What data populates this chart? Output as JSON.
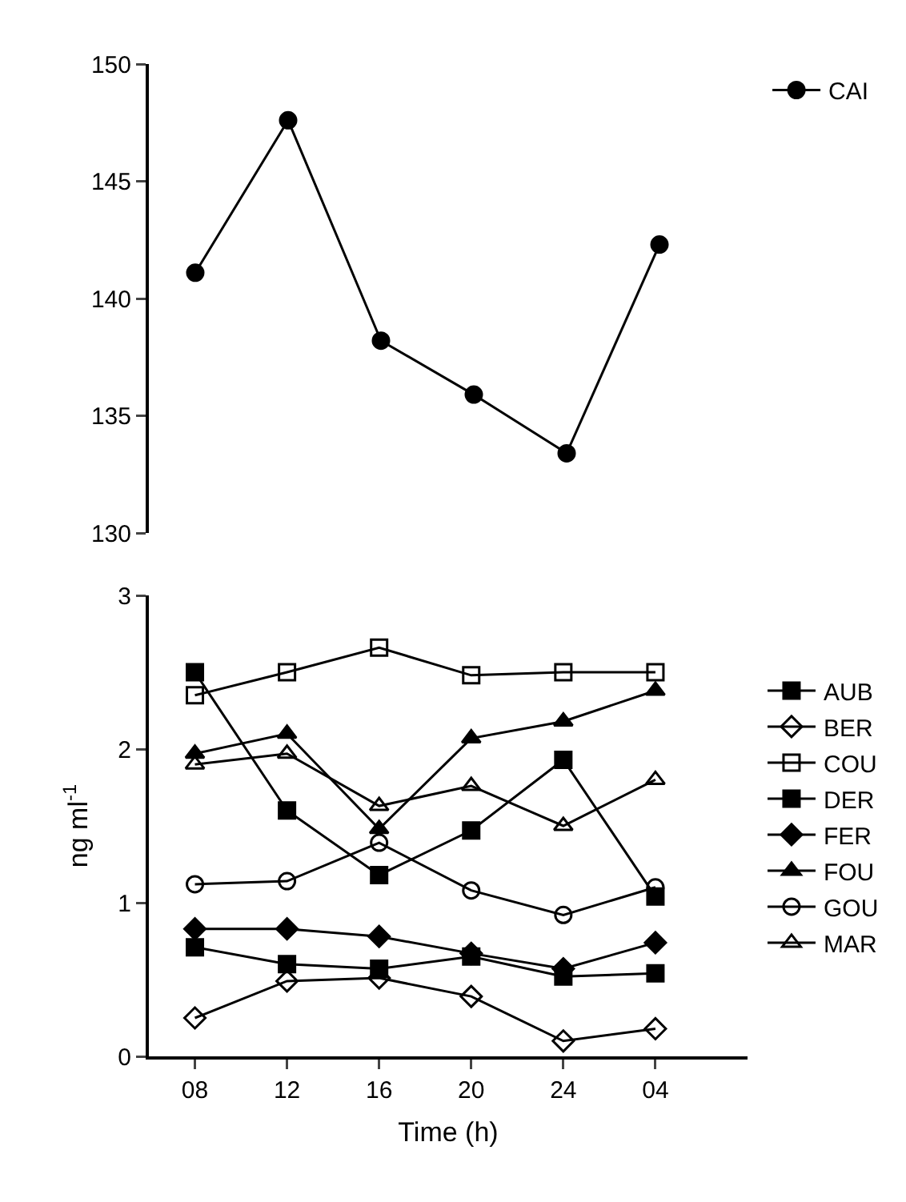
{
  "chart_data": [
    {
      "type": "line",
      "categories": [
        "08",
        "12",
        "16",
        "20",
        "24",
        "04"
      ],
      "ylim": [
        130,
        150
      ],
      "yticks": [
        130,
        135,
        140,
        145,
        150
      ],
      "tick_labels": "y",
      "grid": false,
      "legend": "top right",
      "series": [
        {
          "name": "CAI",
          "color": "#000000",
          "marker": "circle",
          "values": [
            141.1,
            147.6,
            138.2,
            135.9,
            133.4,
            142.3
          ]
        }
      ]
    },
    {
      "type": "line",
      "categories": [
        "08",
        "12",
        "16",
        "20",
        "24",
        "04"
      ],
      "xlabel": "Time (h)",
      "ylabel": "ng ml$^{-1}$",
      "ylim": [
        0,
        3
      ],
      "yticks": [
        0,
        1,
        2,
        3
      ],
      "grid": false,
      "legend": "right",
      "series": [
        {
          "name": "AUB",
          "color": "#000000",
          "marker": "square",
          "values": [
            2.5,
            1.6,
            1.18,
            1.47,
            1.93,
            1.04
          ]
        },
        {
          "name": "BER",
          "color": "#000000",
          "marker": "diamond-open",
          "values": [
            0.25,
            0.49,
            0.51,
            0.39,
            0.1,
            0.18
          ]
        },
        {
          "name": "COU",
          "color": "#000000",
          "marker": "square-open",
          "values": [
            2.35,
            2.5,
            2.66,
            2.48,
            2.5,
            2.5
          ]
        },
        {
          "name": "DER",
          "color": "#000000",
          "marker": "square",
          "values": [
            0.71,
            0.6,
            0.57,
            0.65,
            0.52,
            0.54
          ]
        },
        {
          "name": "FER",
          "color": "#000000",
          "marker": "diamond",
          "values": [
            0.83,
            0.83,
            0.78,
            0.67,
            0.57,
            0.74
          ]
        },
        {
          "name": "FOU",
          "color": "#000000",
          "marker": "triangle",
          "values": [
            1.97,
            2.1,
            1.48,
            2.07,
            2.18,
            2.38
          ]
        },
        {
          "name": "GOU",
          "color": "#000000",
          "marker": "circle-open",
          "values": [
            1.12,
            1.14,
            1.39,
            1.08,
            0.92,
            1.1
          ]
        },
        {
          "name": "MAR",
          "color": "#000000",
          "marker": "triangle-open",
          "values": [
            1.9,
            1.97,
            1.63,
            1.76,
            1.5,
            1.8
          ]
        }
      ]
    }
  ]
}
